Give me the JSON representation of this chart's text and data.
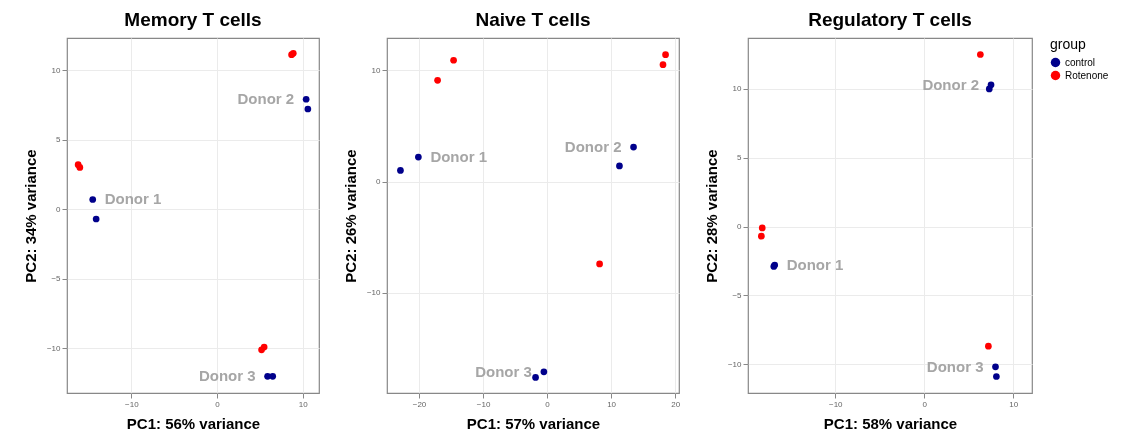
{
  "chart_data": [
    {
      "type": "scatter",
      "title": "Memory T cells",
      "xlabel": "PC1: 56% variance",
      "ylabel": "PC2: 34% variance",
      "xlim": [
        -17.5,
        11.9
      ],
      "ylim": [
        -13.2,
        12.3
      ],
      "xticks": [
        -10,
        0,
        10
      ],
      "yticks": [
        -10,
        -5,
        0,
        5,
        10
      ],
      "grid": true,
      "marker": "circle",
      "series": [
        {
          "color": "#00008b",
          "x": [
            -14.5,
            -14.1,
            10.4,
            10.6,
            5.9,
            6.5
          ],
          "values": [
            0.7,
            -0.7,
            7.9,
            7.2,
            -12.0,
            -12.0
          ]
        },
        {
          "color": "#ff0000",
          "x": [
            -16.2,
            -16.0,
            8.7,
            8.9,
            5.2,
            5.5
          ],
          "values": [
            3.2,
            3.0,
            11.1,
            11.2,
            -10.1,
            -9.9
          ]
        }
      ],
      "annotations": [
        "Donor 1",
        "Donor 2",
        "Donor 3"
      ]
    },
    {
      "type": "scatter",
      "title": "Naive T cells",
      "xlabel": "PC1: 57% variance",
      "ylabel": "PC2: 26% variance",
      "xlim": [
        -25.0,
        20.6
      ],
      "ylim": [
        -19.0,
        12.9
      ],
      "xticks": [
        -20,
        -10,
        0,
        10,
        20
      ],
      "yticks": [
        -10,
        0,
        10
      ],
      "grid": true,
      "marker": "circle",
      "series": [
        {
          "color": "#00008b",
          "x": [
            -20.1,
            -22.9,
            13.5,
            11.3,
            -0.5,
            -1.8
          ],
          "values": [
            2.2,
            1.0,
            3.1,
            1.4,
            -17.1,
            -17.6
          ]
        },
        {
          "color": "#ff0000",
          "x": [
            -14.6,
            -17.1,
            18.5,
            18.1,
            8.2
          ],
          "values": [
            10.9,
            9.1,
            11.4,
            10.5,
            -7.4
          ]
        }
      ],
      "annotations": [
        "Donor 1",
        "Donor 2",
        "Donor 3"
      ]
    },
    {
      "type": "scatter",
      "title": "Regulatory T cells",
      "xlabel": "PC1: 58% variance",
      "ylabel": "PC2: 28% variance",
      "xlim": [
        -19.8,
        12.1
      ],
      "ylim": [
        -12.1,
        13.7
      ],
      "xticks": [
        -10,
        0,
        10
      ],
      "yticks": [
        -10,
        -5,
        0,
        5,
        10
      ],
      "grid": true,
      "marker": "circle",
      "legend": "right",
      "legend_title": "group",
      "series": [
        {
          "name": "control",
          "color": "#00008b",
          "x": [
            -16.8,
            -16.9,
            7.5,
            7.3,
            8.0,
            8.1
          ],
          "values": [
            -2.8,
            -2.9,
            10.3,
            10.0,
            -10.2,
            -10.9
          ]
        },
        {
          "name": "Rotenone",
          "color": "#ff0000",
          "x": [
            -18.2,
            -18.3,
            6.3,
            7.2
          ],
          "values": [
            -0.1,
            -0.7,
            12.5,
            -8.7
          ]
        }
      ],
      "annotations": [
        "Donor 1",
        "Donor 2",
        "Donor 3"
      ]
    }
  ]
}
